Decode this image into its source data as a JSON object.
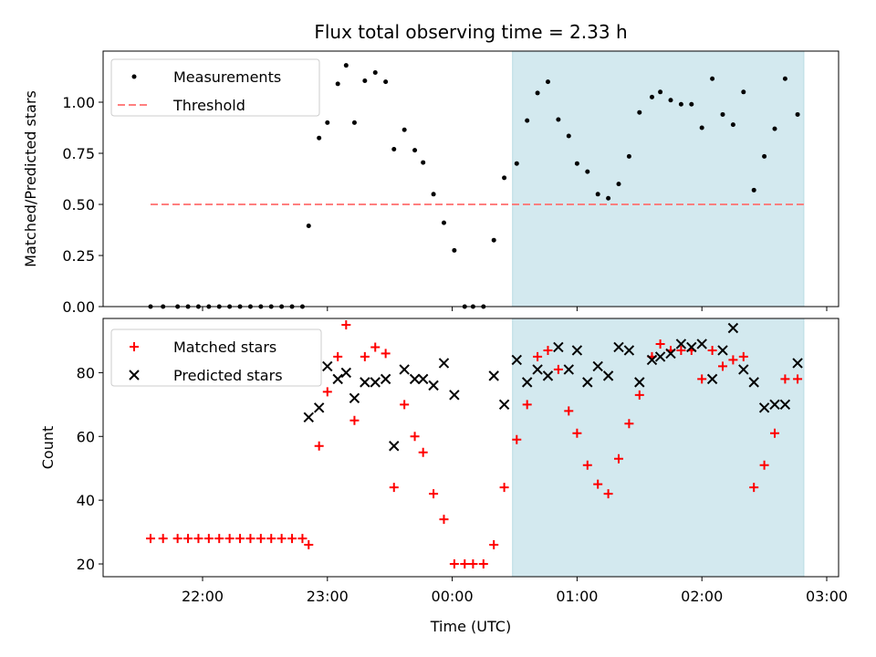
{
  "title": "Flux total observing time = 2.33 h",
  "colors": {
    "measurement": "#000000",
    "threshold": "#ff7f7f",
    "matched": "#ff0000",
    "predicted": "#000000",
    "shade": "#d3e9ef"
  },
  "chart_data": [
    {
      "type": "scatter",
      "panel": "top",
      "ylabel": "Matched/Predicted stars",
      "xlabel": "",
      "ylim": [
        0,
        1.25
      ],
      "yticks": [
        "0.00",
        "0.25",
        "0.50",
        "0.75",
        "1.00"
      ],
      "legend_placement": "top-left",
      "shaded_interval": [
        "00:29",
        "02:49"
      ],
      "series": [
        {
          "name": "Measurements",
          "marker": "dot",
          "points": [
            [
              "21:35",
              0
            ],
            [
              "21:41",
              0
            ],
            [
              "21:48",
              0
            ],
            [
              "21:53",
              0
            ],
            [
              "21:58",
              0
            ],
            [
              "22:03",
              0
            ],
            [
              "22:08",
              0
            ],
            [
              "22:13",
              0
            ],
            [
              "22:18",
              0
            ],
            [
              "22:23",
              0
            ],
            [
              "22:28",
              0
            ],
            [
              "22:33",
              0
            ],
            [
              "22:38",
              0
            ],
            [
              "22:43",
              0
            ],
            [
              "22:48",
              0
            ],
            [
              "22:51",
              0.395
            ],
            [
              "22:56",
              0.825
            ],
            [
              "23:00",
              0.9
            ],
            [
              "23:05",
              1.09
            ],
            [
              "23:09",
              1.18
            ],
            [
              "23:13",
              0.9
            ],
            [
              "23:18",
              1.105
            ],
            [
              "23:23",
              1.145
            ],
            [
              "23:28",
              1.1
            ],
            [
              "23:32",
              0.77
            ],
            [
              "23:37",
              0.865
            ],
            [
              "23:42",
              0.765
            ],
            [
              "23:46",
              0.705
            ],
            [
              "23:51",
              0.55
            ],
            [
              "23:56",
              0.41
            ],
            [
              "00:01",
              0.275
            ],
            [
              "00:06",
              0
            ],
            [
              "00:10",
              0
            ],
            [
              "00:15",
              0
            ],
            [
              "00:20",
              0.325
            ],
            [
              "00:25",
              0.63
            ],
            [
              "00:31",
              0.7
            ],
            [
              "00:36",
              0.91
            ],
            [
              "00:41",
              1.045
            ],
            [
              "00:46",
              1.1
            ],
            [
              "00:51",
              0.915
            ],
            [
              "00:56",
              0.835
            ],
            [
              "01:00",
              0.7
            ],
            [
              "01:05",
              0.66
            ],
            [
              "01:10",
              0.55
            ],
            [
              "01:15",
              0.53
            ],
            [
              "01:20",
              0.6
            ],
            [
              "01:25",
              0.735
            ],
            [
              "01:30",
              0.95
            ],
            [
              "01:36",
              1.025
            ],
            [
              "01:40",
              1.05
            ],
            [
              "01:45",
              1.01
            ],
            [
              "01:50",
              0.99
            ],
            [
              "01:55",
              0.99
            ],
            [
              "02:00",
              0.875
            ],
            [
              "02:05",
              1.115
            ],
            [
              "02:10",
              0.94
            ],
            [
              "02:15",
              0.89
            ],
            [
              "02:20",
              1.05
            ],
            [
              "02:25",
              0.57
            ],
            [
              "02:30",
              0.735
            ],
            [
              "02:35",
              0.87
            ],
            [
              "02:40",
              1.115
            ],
            [
              "02:46",
              0.94
            ]
          ]
        },
        {
          "name": "Threshold",
          "marker": "dashed-line",
          "points": [
            [
              "21:35",
              0.5
            ],
            [
              "02:49",
              0.5
            ]
          ]
        }
      ]
    },
    {
      "type": "scatter",
      "panel": "bottom",
      "ylabel": "Count",
      "xlabel": "Time (UTC)",
      "ylim": [
        16,
        97
      ],
      "yticks": [
        "20",
        "40",
        "60",
        "80"
      ],
      "xticks": [
        "22:00",
        "23:00",
        "00:00",
        "01:00",
        "02:00",
        "03:00"
      ],
      "legend_placement": "top-left",
      "shaded_interval": [
        "00:29",
        "02:49"
      ],
      "series": [
        {
          "name": "Matched stars",
          "marker": "plus",
          "points": [
            [
              "21:35",
              28
            ],
            [
              "21:41",
              28
            ],
            [
              "21:48",
              28
            ],
            [
              "21:53",
              28
            ],
            [
              "21:58",
              28
            ],
            [
              "22:03",
              28
            ],
            [
              "22:08",
              28
            ],
            [
              "22:13",
              28
            ],
            [
              "22:18",
              28
            ],
            [
              "22:23",
              28
            ],
            [
              "22:28",
              28
            ],
            [
              "22:33",
              28
            ],
            [
              "22:38",
              28
            ],
            [
              "22:43",
              28
            ],
            [
              "22:48",
              28
            ],
            [
              "22:51",
              26
            ],
            [
              "22:56",
              57
            ],
            [
              "23:00",
              74
            ],
            [
              "23:05",
              85
            ],
            [
              "23:09",
              95
            ],
            [
              "23:13",
              65
            ],
            [
              "23:18",
              85
            ],
            [
              "23:23",
              88
            ],
            [
              "23:28",
              86
            ],
            [
              "23:32",
              44
            ],
            [
              "23:37",
              70
            ],
            [
              "23:42",
              60
            ],
            [
              "23:46",
              55
            ],
            [
              "23:51",
              42
            ],
            [
              "23:56",
              34
            ],
            [
              "00:01",
              20
            ],
            [
              "00:06",
              20
            ],
            [
              "00:10",
              20
            ],
            [
              "00:15",
              20
            ],
            [
              "00:20",
              26
            ],
            [
              "00:25",
              44
            ],
            [
              "00:31",
              59
            ],
            [
              "00:36",
              70
            ],
            [
              "00:41",
              85
            ],
            [
              "00:46",
              87
            ],
            [
              "00:51",
              81
            ],
            [
              "00:56",
              68
            ],
            [
              "01:00",
              61
            ],
            [
              "01:05",
              51
            ],
            [
              "01:10",
              45
            ],
            [
              "01:15",
              42
            ],
            [
              "01:20",
              53
            ],
            [
              "01:25",
              64
            ],
            [
              "01:30",
              73
            ],
            [
              "01:36",
              85
            ],
            [
              "01:40",
              89
            ],
            [
              "01:45",
              87
            ],
            [
              "01:50",
              87
            ],
            [
              "01:55",
              87
            ],
            [
              "02:00",
              78
            ],
            [
              "02:05",
              87
            ],
            [
              "02:10",
              82
            ],
            [
              "02:15",
              84
            ],
            [
              "02:20",
              85
            ],
            [
              "02:25",
              44
            ],
            [
              "02:30",
              51
            ],
            [
              "02:35",
              61
            ],
            [
              "02:40",
              78
            ],
            [
              "02:46",
              78
            ]
          ]
        },
        {
          "name": "Predicted stars",
          "marker": "x",
          "points": [
            [
              "22:51",
              66
            ],
            [
              "22:56",
              69
            ],
            [
              "23:00",
              82
            ],
            [
              "23:05",
              78
            ],
            [
              "23:09",
              80
            ],
            [
              "23:13",
              72
            ],
            [
              "23:18",
              77
            ],
            [
              "23:23",
              77
            ],
            [
              "23:28",
              78
            ],
            [
              "23:32",
              57
            ],
            [
              "23:37",
              81
            ],
            [
              "23:42",
              78
            ],
            [
              "23:46",
              78
            ],
            [
              "23:51",
              76
            ],
            [
              "23:56",
              83
            ],
            [
              "00:01",
              73
            ],
            [
              "00:20",
              79
            ],
            [
              "00:25",
              70
            ],
            [
              "00:31",
              84
            ],
            [
              "00:36",
              77
            ],
            [
              "00:41",
              81
            ],
            [
              "00:46",
              79
            ],
            [
              "00:51",
              88
            ],
            [
              "00:56",
              81
            ],
            [
              "01:00",
              87
            ],
            [
              "01:05",
              77
            ],
            [
              "01:10",
              82
            ],
            [
              "01:15",
              79
            ],
            [
              "01:20",
              88
            ],
            [
              "01:25",
              87
            ],
            [
              "01:30",
              77
            ],
            [
              "01:36",
              84
            ],
            [
              "01:40",
              85
            ],
            [
              "01:45",
              86
            ],
            [
              "01:50",
              89
            ],
            [
              "01:55",
              88
            ],
            [
              "02:00",
              89
            ],
            [
              "02:05",
              78
            ],
            [
              "02:10",
              87
            ],
            [
              "02:15",
              94
            ],
            [
              "02:20",
              81
            ],
            [
              "02:25",
              77
            ],
            [
              "02:30",
              69
            ],
            [
              "02:35",
              70
            ],
            [
              "02:40",
              70
            ],
            [
              "02:46",
              83
            ]
          ]
        }
      ]
    }
  ]
}
